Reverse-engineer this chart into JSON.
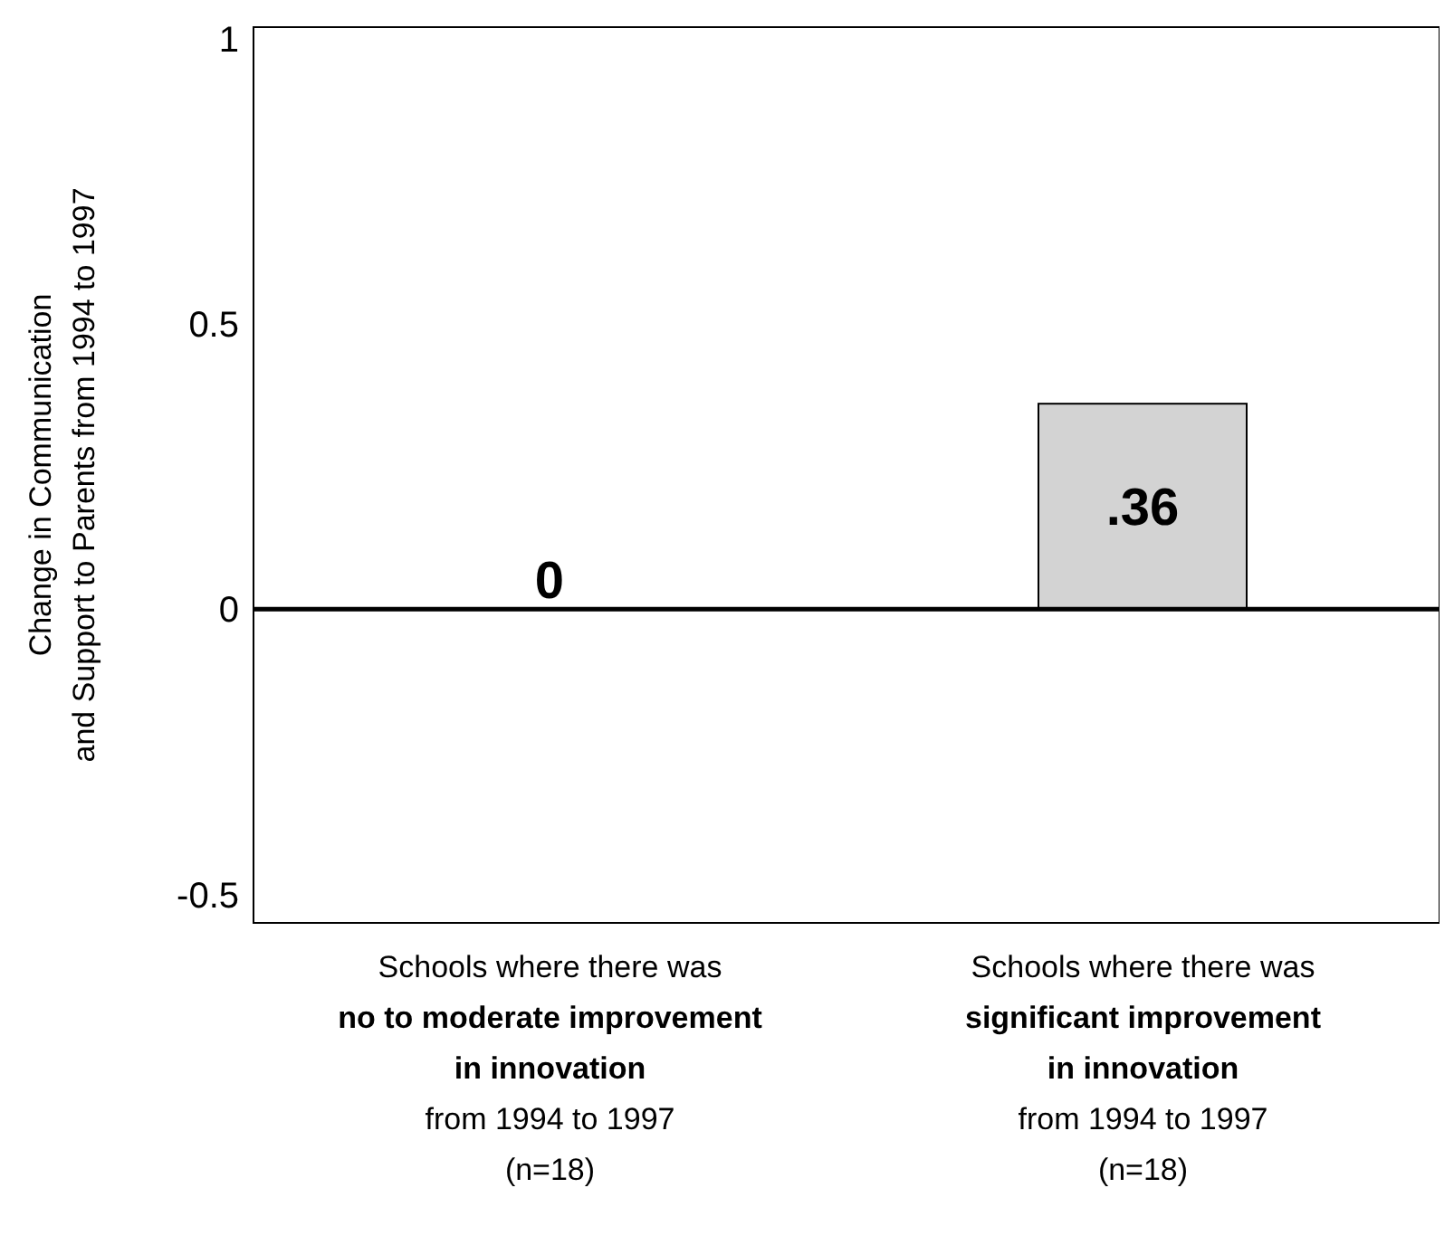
{
  "chart_data": {
    "type": "bar",
    "ylabel": "Change in Communication\nand Support to Parents from 1994 to 1997",
    "categories": [
      "Schools where there was\nno to moderate improvement\nin innovation\nfrom 1994 to 1997\n(n=18)",
      "Schools where there was\nsignificant improvement\nin innovation\nfrom 1994 to 1997\n(n=18)"
    ],
    "values": [
      0,
      0.36
    ],
    "colors": [
      "#000000",
      "#d3d3d3"
    ],
    "value_labels": [
      "0",
      ".36"
    ],
    "ylim": [
      -0.55,
      1.02
    ],
    "yticks": [
      1,
      0.5,
      0,
      -0.5
    ],
    "ref_lines": [
      {
        "axis": "y",
        "value": 0,
        "color": "#000000"
      }
    ],
    "grid": false,
    "legend": false
  }
}
